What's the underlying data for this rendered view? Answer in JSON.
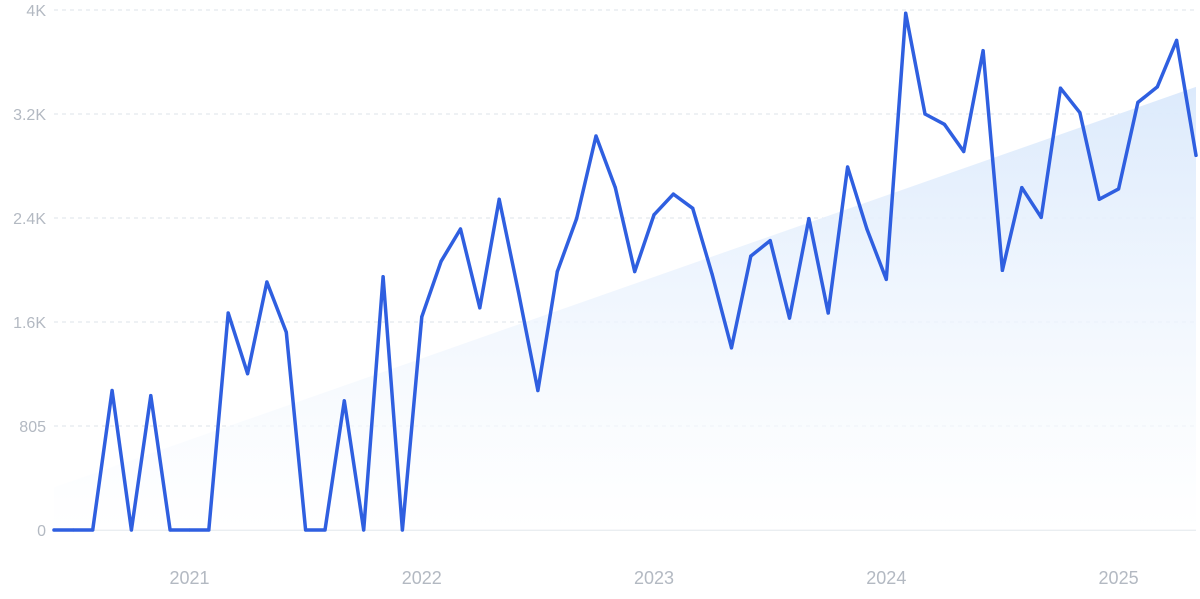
{
  "chart_data": {
    "type": "line",
    "title": "",
    "xlabel": "",
    "ylabel": "",
    "x_start": "2020-06",
    "x_end": "2025-05",
    "x_tick_labels": [
      "2021",
      "2022",
      "2023",
      "2024",
      "2025"
    ],
    "x_tick_dates": [
      "2021-01",
      "2022-01",
      "2023-01",
      "2024-01",
      "2025-01"
    ],
    "y_tick_labels": [
      "0",
      "805",
      "1.6K",
      "2.4K",
      "3.2K",
      "4K"
    ],
    "y_tick_values": [
      0,
      805,
      1610,
      2415,
      3220,
      4025
    ],
    "ylim": [
      0,
      4025
    ],
    "grid": true,
    "legend": "none",
    "colors": {
      "line": "#2f5fe0",
      "trend_fill_top": "#dceafc",
      "trend_fill_bottom": "#ffffff",
      "grid": "#dde3ea",
      "tick_text": "#b3b9c2"
    },
    "trend": {
      "start": 330,
      "end": 3430
    },
    "series": [
      {
        "x": [
          "2020-06",
          "2020-07",
          "2020-08",
          "2020-09",
          "2020-10",
          "2020-11",
          "2020-12",
          "2021-01",
          "2021-02",
          "2021-03",
          "2021-04",
          "2021-05",
          "2021-06",
          "2021-07",
          "2021-08",
          "2021-09",
          "2021-10",
          "2021-11",
          "2021-12",
          "2022-01",
          "2022-02",
          "2022-03",
          "2022-04",
          "2022-05",
          "2022-06",
          "2022-07",
          "2022-08",
          "2022-09",
          "2022-10",
          "2022-11",
          "2022-12",
          "2023-01",
          "2023-02",
          "2023-03",
          "2023-04",
          "2023-05",
          "2023-06",
          "2023-07",
          "2023-08",
          "2023-09",
          "2023-10",
          "2023-11",
          "2023-12",
          "2024-01",
          "2024-02",
          "2024-03",
          "2024-04",
          "2024-05",
          "2024-06",
          "2024-07",
          "2024-08",
          "2024-09",
          "2024-10",
          "2024-11",
          "2024-12",
          "2025-01",
          "2025-02",
          "2025-03",
          "2025-04",
          "2025-05"
        ],
        "values": [
          0,
          0,
          0,
          1080,
          0,
          1040,
          0,
          0,
          0,
          1680,
          1210,
          1920,
          1530,
          0,
          0,
          1000,
          0,
          1960,
          0,
          1650,
          2080,
          2330,
          1720,
          2560,
          1840,
          1080,
          2000,
          2410,
          3050,
          2650,
          2000,
          2440,
          2600,
          2490,
          1980,
          1410,
          2120,
          2240,
          1640,
          2410,
          1680,
          2810,
          2330,
          1940,
          4000,
          3220,
          3140,
          2930,
          3710,
          2010,
          2650,
          2420,
          3420,
          3230,
          2560,
          2640,
          3310,
          3430,
          3790,
          2900
        ]
      }
    ]
  }
}
